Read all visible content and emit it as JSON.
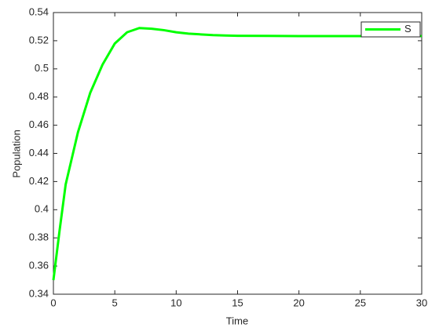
{
  "chart_data": {
    "type": "line",
    "x_label": "Time",
    "y_label": "Population",
    "x": [
      0,
      0.5,
      1,
      2,
      3,
      4,
      5,
      6,
      7,
      8,
      9,
      10,
      11,
      12,
      13,
      14,
      15,
      17.5,
      20,
      25,
      30
    ],
    "series": [
      {
        "name": "S",
        "color": "#00ff00",
        "values": [
          0.35,
          0.385,
          0.418,
          0.455,
          0.483,
          0.503,
          0.518,
          0.526,
          0.529,
          0.5285,
          0.5275,
          0.526,
          0.525,
          0.5245,
          0.524,
          0.5237,
          0.5235,
          0.5234,
          0.5233,
          0.5233,
          0.5233
        ]
      }
    ],
    "xlim": [
      0,
      30
    ],
    "xticks": [
      0,
      5,
      10,
      15,
      20,
      25,
      30
    ],
    "ylim": [
      0.34,
      0.54
    ],
    "yticks": [
      0.34,
      0.36,
      0.38,
      0.4,
      0.42,
      0.44,
      0.46,
      0.48,
      0.5,
      0.52,
      0.54
    ],
    "grid": false,
    "legend": "northeast"
  }
}
